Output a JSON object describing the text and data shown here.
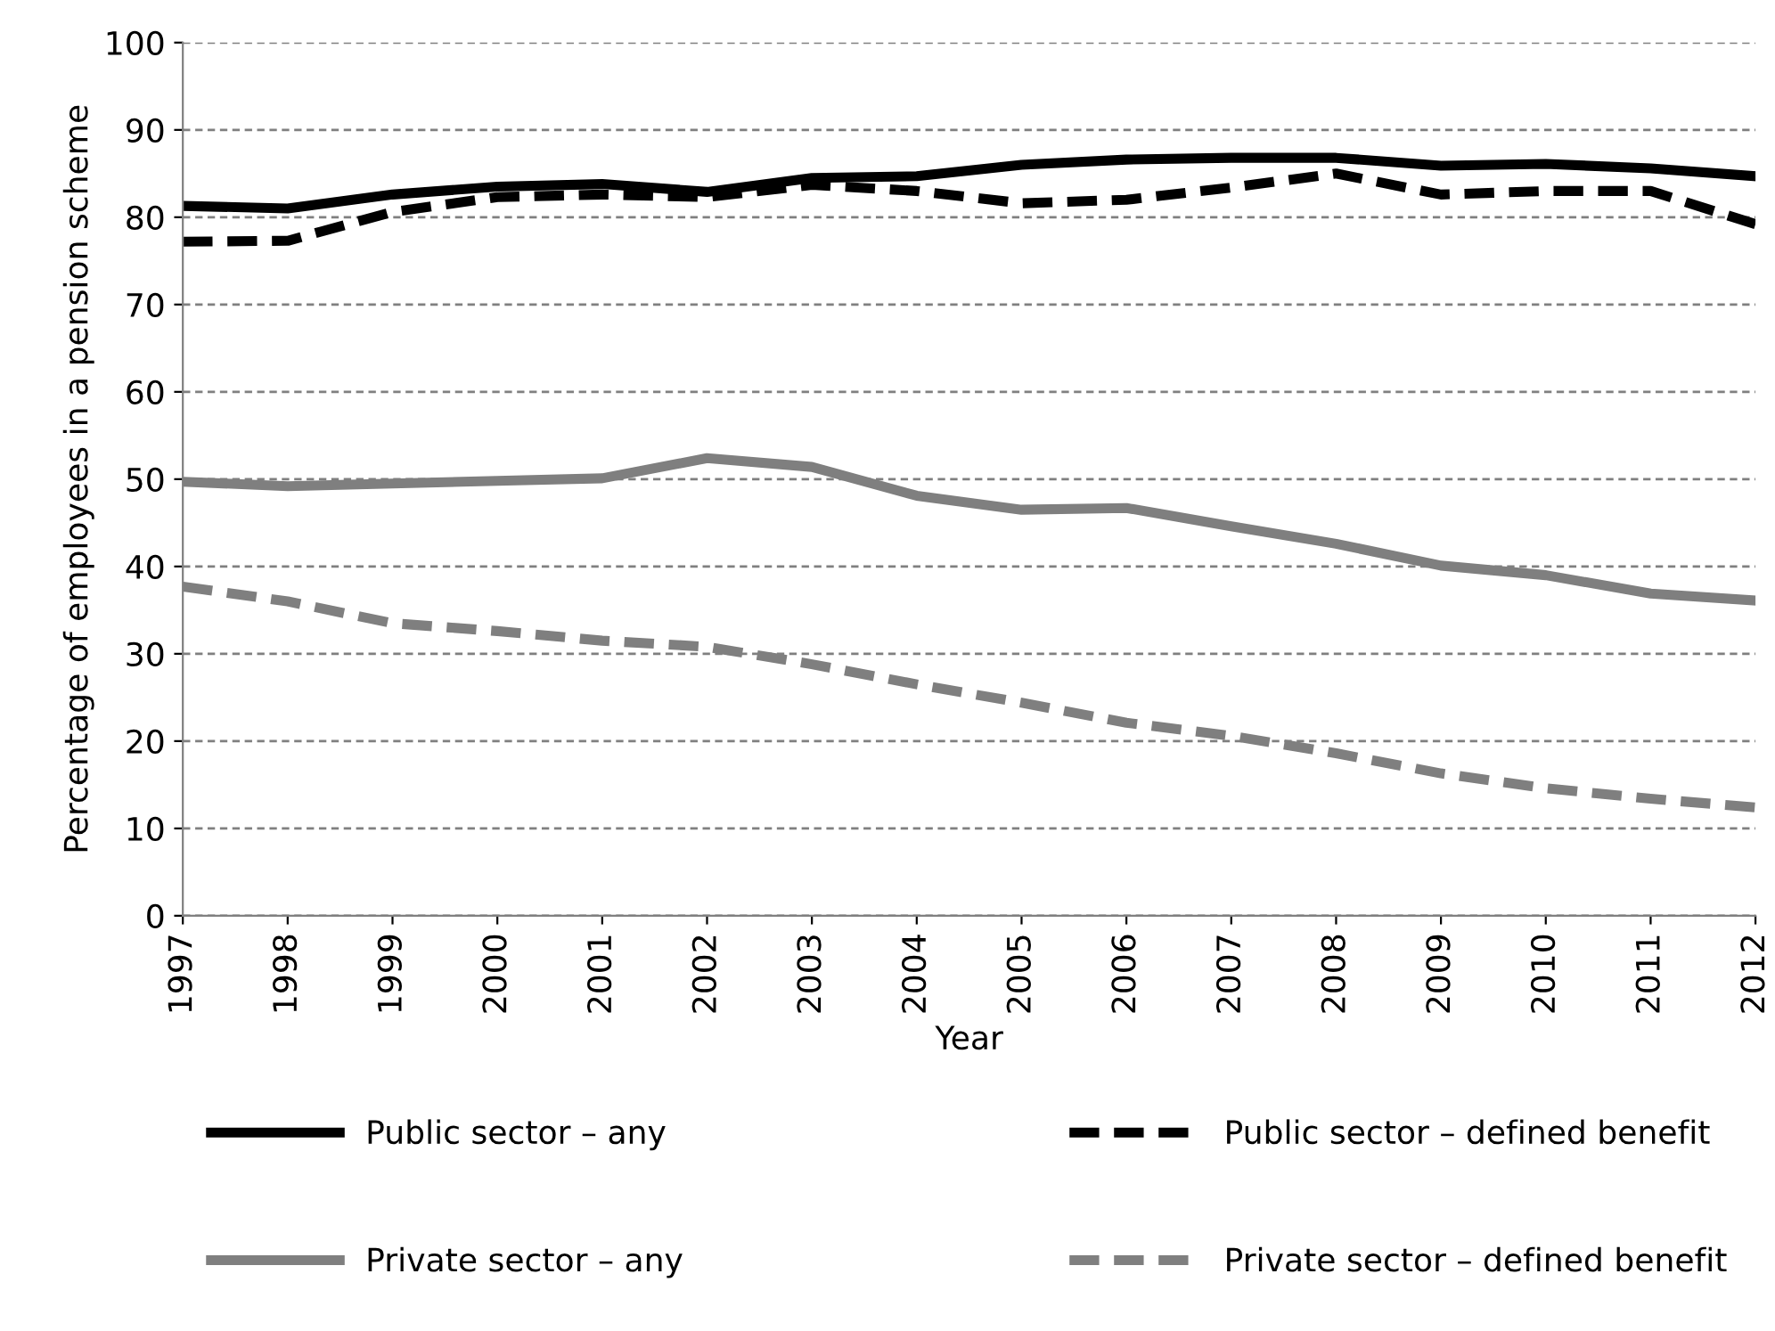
{
  "chart_data": {
    "type": "line",
    "xlabel": "Year",
    "ylabel": "Percentage of employees in a pension scheme",
    "categories": [
      "1997",
      "1998",
      "1999",
      "2000",
      "2001",
      "2002",
      "2003",
      "2004",
      "2005",
      "2006",
      "2007",
      "2008",
      "2009",
      "2010",
      "2011",
      "2012"
    ],
    "series": [
      {
        "name": "Public sector – any",
        "color": "#000000",
        "line_style": "solid",
        "values": [
          81.3,
          81.0,
          82.6,
          83.5,
          83.8,
          82.9,
          84.5,
          84.7,
          86.0,
          86.6,
          86.8,
          86.8,
          85.9,
          86.1,
          85.6,
          84.7
        ]
      },
      {
        "name": "Public sector – defined benefit",
        "color": "#000000",
        "line_style": "dashed",
        "values": [
          77.2,
          77.3,
          80.6,
          82.3,
          82.6,
          82.3,
          83.7,
          83.0,
          81.6,
          82.0,
          83.4,
          85.0,
          82.6,
          83.0,
          83.0,
          79.2
        ]
      },
      {
        "name": "Private sector – any",
        "color": "#7f7f7f",
        "line_style": "solid",
        "values": [
          49.7,
          49.2,
          49.5,
          49.8,
          50.1,
          52.4,
          51.4,
          48.1,
          46.5,
          46.7,
          44.6,
          42.6,
          40.1,
          39.0,
          36.9,
          36.1
        ]
      },
      {
        "name": "Private sector – defined benefit",
        "color": "#7f7f7f",
        "line_style": "dashed",
        "values": [
          37.7,
          36.0,
          33.5,
          32.6,
          31.5,
          30.8,
          28.8,
          26.5,
          24.4,
          22.1,
          20.6,
          18.6,
          16.3,
          14.6,
          13.4,
          12.4
        ]
      }
    ],
    "ylim": [
      0,
      100
    ],
    "yticks": [
      0,
      10,
      20,
      30,
      40,
      50,
      60,
      70,
      80,
      90,
      100
    ],
    "grid": "y",
    "legend": "bottom",
    "marker": "none"
  }
}
